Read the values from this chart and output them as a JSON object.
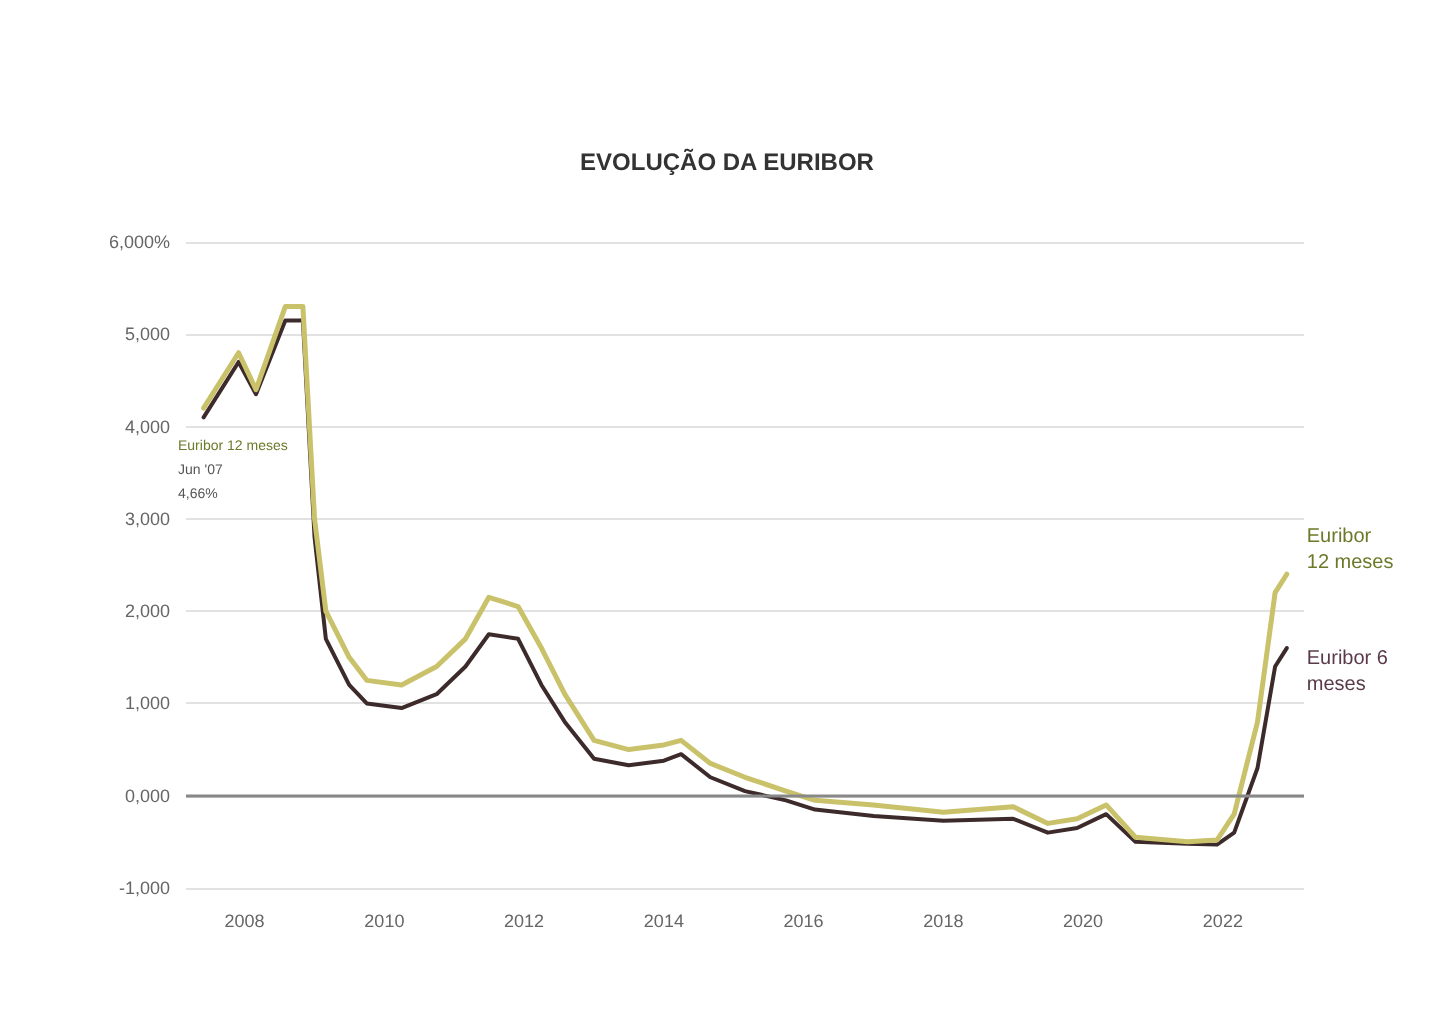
{
  "chart_data": {
    "type": "line",
    "title": "EVOLUÇÃO DA EURIBOR",
    "x": [
      "2007-06",
      "2007-12",
      "2008-03",
      "2008-08",
      "2008-11",
      "2009-01",
      "2009-03",
      "2009-07",
      "2009-10",
      "2010-04",
      "2010-10",
      "2011-03",
      "2011-07",
      "2011-12",
      "2012-04",
      "2012-08",
      "2013-01",
      "2013-07",
      "2014-01",
      "2014-04",
      "2014-09",
      "2015-03",
      "2015-10",
      "2016-03",
      "2017-01",
      "2018-01",
      "2019-01",
      "2019-07",
      "2019-12",
      "2020-05",
      "2020-10",
      "2021-07",
      "2021-12",
      "2022-03",
      "2022-07",
      "2022-10",
      "2022-12"
    ],
    "series": [
      {
        "name": "Euribor 12 meses",
        "color": "#c9c26a",
        "values": [
          4.2,
          4.8,
          4.4,
          5.3,
          5.3,
          3.0,
          2.0,
          1.5,
          1.25,
          1.2,
          1.4,
          1.7,
          2.15,
          2.05,
          1.6,
          1.1,
          0.6,
          0.5,
          0.55,
          0.6,
          0.35,
          0.2,
          0.05,
          -0.05,
          -0.1,
          -0.18,
          -0.12,
          -0.3,
          -0.25,
          -0.1,
          -0.45,
          -0.5,
          -0.48,
          -0.2,
          0.8,
          2.2,
          2.4
        ]
      },
      {
        "name": "Euribor 6 meses",
        "color": "#3d2b2b",
        "values": [
          4.1,
          4.7,
          4.35,
          5.15,
          5.15,
          2.8,
          1.7,
          1.2,
          1.0,
          0.95,
          1.1,
          1.4,
          1.75,
          1.7,
          1.2,
          0.8,
          0.4,
          0.33,
          0.38,
          0.45,
          0.2,
          0.05,
          -0.05,
          -0.15,
          -0.22,
          -0.27,
          -0.25,
          -0.4,
          -0.35,
          -0.2,
          -0.5,
          -0.52,
          -0.53,
          -0.4,
          0.3,
          1.4,
          1.6
        ]
      }
    ],
    "annotations": [
      "Euribor 12 meses",
      "Jun '07",
      "4,66%"
    ],
    "xlim": [
      "2007-03",
      "2023-03"
    ],
    "xticks": [
      {
        "value": "2008",
        "label": "2008"
      },
      {
        "value": "2010",
        "label": "2010"
      },
      {
        "value": "2012",
        "label": "2012"
      },
      {
        "value": "2014",
        "label": "2014"
      },
      {
        "value": "2016",
        "label": "2016"
      },
      {
        "value": "2018",
        "label": "2018"
      },
      {
        "value": "2020",
        "label": "2020"
      },
      {
        "value": "2022",
        "label": "2022"
      }
    ],
    "ylim": [
      -1,
      6
    ],
    "yticks": [
      {
        "value": -1,
        "label": "-1,000"
      },
      {
        "value": 0,
        "label": "0,000"
      },
      {
        "value": 1,
        "label": "1,000"
      },
      {
        "value": 2,
        "label": "2,000"
      },
      {
        "value": 3,
        "label": "3,000"
      },
      {
        "value": 4,
        "label": "4,000"
      },
      {
        "value": 5,
        "label": "5,000"
      },
      {
        "value": 6,
        "label": "6,000%"
      }
    ],
    "ref_lines": [
      {
        "axis": "y",
        "value": 0,
        "color": "#888888"
      }
    ],
    "grid": "y",
    "legend": false,
    "marker": "none",
    "line_style": "solid"
  }
}
